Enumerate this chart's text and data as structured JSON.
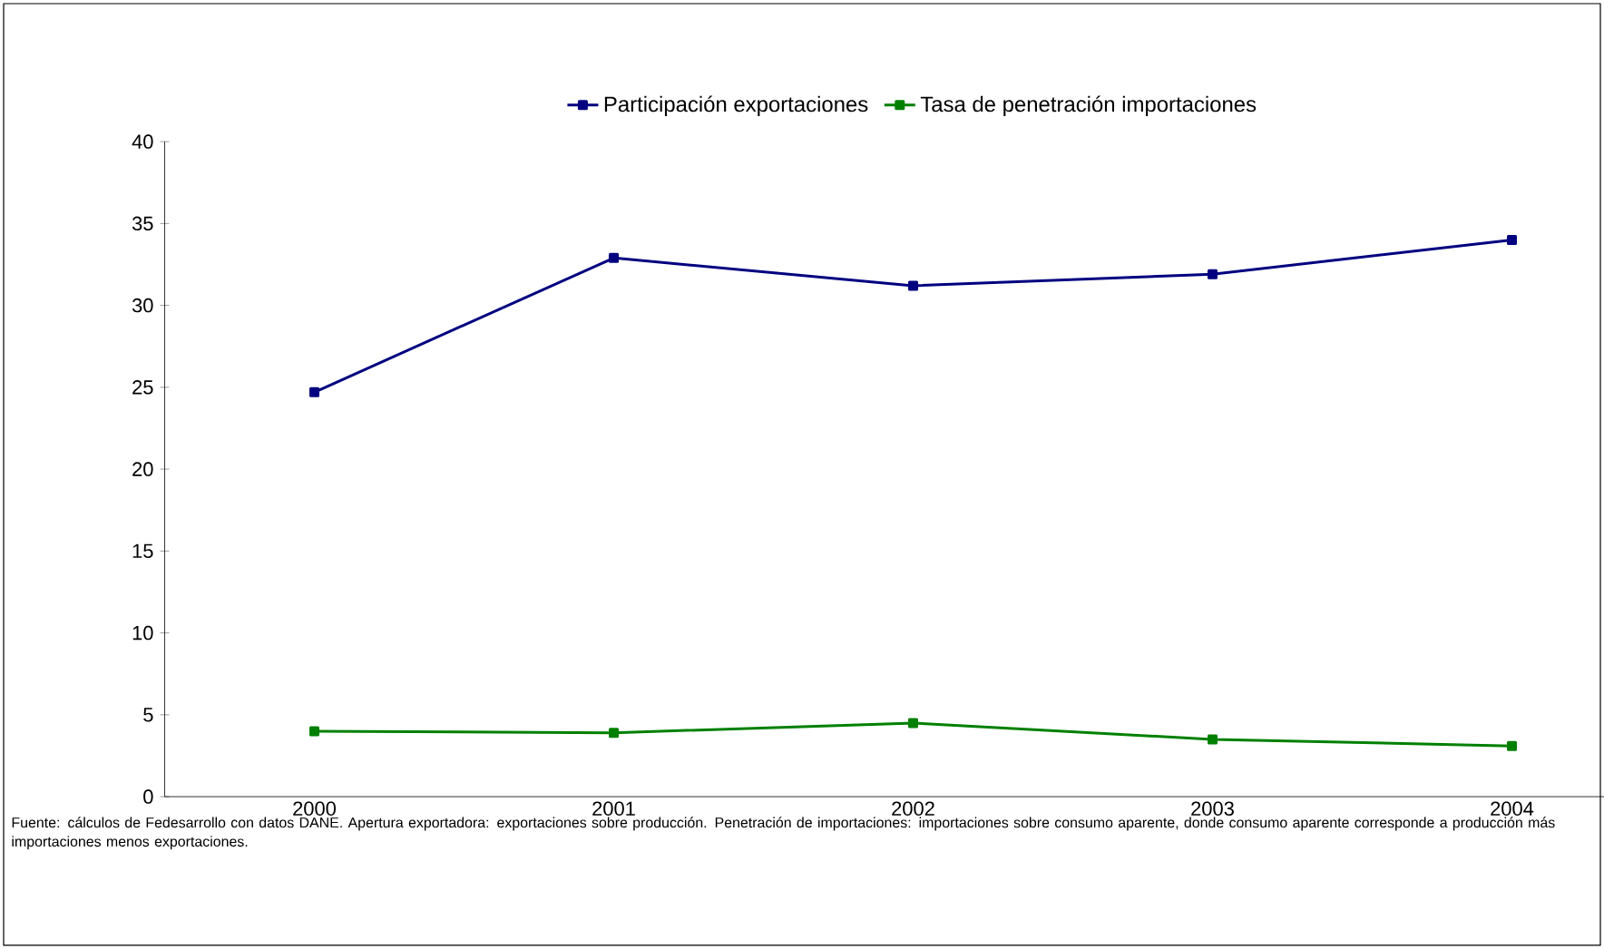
{
  "chart_data": {
    "type": "line",
    "categories": [
      "2000",
      "2001",
      "2002",
      "2003",
      "2004"
    ],
    "series": [
      {
        "name": "Participación exportaciones",
        "color": "#000080",
        "values": [
          24.7,
          32.9,
          31.2,
          31.9,
          34.0
        ]
      },
      {
        "name": "Tasa de penetración importaciones",
        "color": "#008000",
        "values": [
          4.0,
          3.9,
          4.5,
          3.5,
          3.1
        ]
      }
    ],
    "ylim": [
      0,
      40
    ],
    "yticks": [
      0,
      5,
      10,
      15,
      20,
      25,
      30,
      35,
      40
    ],
    "grid": false,
    "legend": "top",
    "marker": "square",
    "line_style": "solid",
    "annotations": [
      "Fuente: cálculos de Fedesarrollo con datos DANE. Apertura exportadora: exportaciones sobre producción. Penetración de importaciones: importaciones sobre consumo aparente, donde consumo aparente corresponde a producción más importaciones menos exportaciones."
    ]
  }
}
